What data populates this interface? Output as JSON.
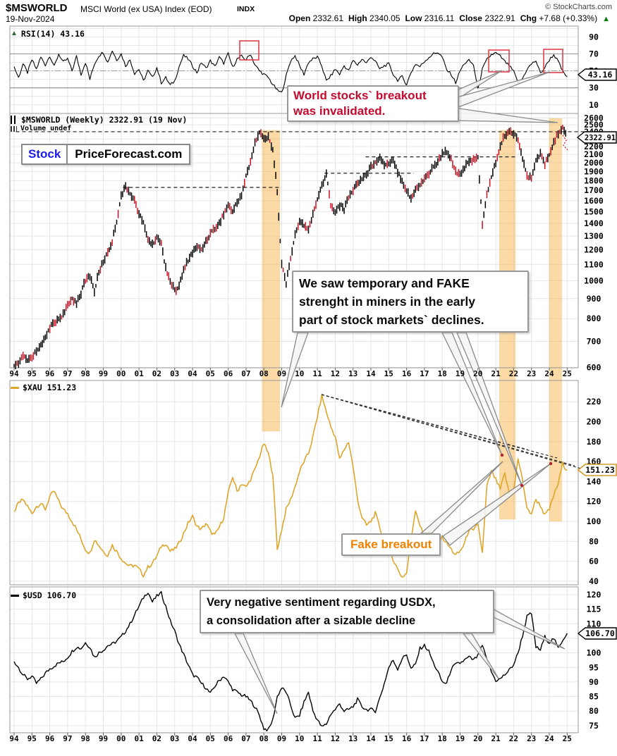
{
  "header": {
    "symbol": "$MSWORLD",
    "name": "MSCI World (ex USA) Index (EOD)",
    "exchange": "INDX",
    "copyright": "© StockCharts.com",
    "date": "19-Nov-2024",
    "open_label": "Open",
    "open": "2332.61",
    "high_label": "High",
    "high": "2340.05",
    "low_label": "Low",
    "low": "2316.11",
    "close_label": "Close",
    "close": "2322.91",
    "chg_label": "Chg",
    "chg": "+7.68 (+0.33%)",
    "chg_arrow": "▲",
    "up_color": "#007a00"
  },
  "watermark": {
    "part1": "Stock",
    "part2": "PriceForecast.com",
    "part1_color": "#1a1aee"
  },
  "legends": {
    "rsi": "RSI(14) 43.16",
    "main": "$MSWORLD (Weekly) 2322.91 (19 Nov)",
    "volume": "Volume undef",
    "xau": "$XAU 151.23",
    "usd": "$USD 106.70"
  },
  "badges": {
    "rsi": "43.16",
    "main": "2322.91",
    "xau": "151.23",
    "usd": "106.70"
  },
  "annotations": {
    "breakout_line1": "World stocks` breakout",
    "breakout_line2": "was invalidated.",
    "breakout_color": "#c40a2e",
    "miners_line1": "We saw temporary and FAKE",
    "miners_line2": "strenght in miners in the early",
    "miners_line3": "part of stock markets` declines.",
    "fake_breakout": "Fake breakout",
    "fake_color": "#ef8200",
    "usd_line1": "Very negative sentiment regarding USDX,",
    "usd_line2": "a consolidation after a sizable decline",
    "highlight_color": "#f7b246"
  },
  "x_axis": {
    "years": [
      "94",
      "95",
      "96",
      "97",
      "98",
      "99",
      "00",
      "01",
      "02",
      "03",
      "04",
      "05",
      "06",
      "07",
      "08",
      "09",
      "10",
      "11",
      "12",
      "13",
      "14",
      "15",
      "16",
      "17",
      "18",
      "19",
      "20",
      "21",
      "22",
      "23",
      "24",
      "25"
    ]
  },
  "chart_data": [
    {
      "panel": "rsi",
      "type": "line",
      "label": "RSI(14)",
      "current": 43.16,
      "yticks": [
        90,
        70,
        50,
        30,
        10
      ],
      "overbought": 70,
      "midline": 50,
      "oversold": 30,
      "x_start": 1994,
      "x_step": 0.25,
      "values": [
        55,
        42,
        58,
        48,
        63,
        52,
        66,
        57,
        68,
        55,
        70,
        60,
        64,
        50,
        67,
        46,
        60,
        40,
        58,
        68,
        72,
        60,
        74,
        63,
        70,
        56,
        63,
        47,
        52,
        38,
        50,
        42,
        54,
        36,
        42,
        33,
        38,
        55,
        68,
        64,
        56,
        48,
        60,
        53,
        62,
        55,
        66,
        59,
        70,
        54,
        64,
        67,
        63,
        70,
        57,
        50,
        46,
        42,
        34,
        27,
        24,
        44,
        62,
        68,
        56,
        46,
        60,
        64,
        66,
        56,
        38,
        44,
        52,
        46,
        56,
        50,
        62,
        57,
        64,
        59,
        67,
        61,
        52,
        56,
        58,
        46,
        39,
        43,
        34,
        48,
        58,
        55,
        61,
        66,
        70,
        72,
        66,
        51,
        46,
        36,
        50,
        59,
        62,
        57,
        28,
        52,
        63,
        69,
        71,
        67,
        61,
        56,
        49,
        36,
        41,
        52,
        58,
        62,
        47,
        54,
        63,
        69,
        61,
        49,
        43.16
      ]
    },
    {
      "panel": "main",
      "type": "candlestick",
      "label": "$MSWORLD (Weekly)",
      "current": 2322.91,
      "scale": "log",
      "yticks": [
        2600,
        2500,
        2400,
        2200,
        2100,
        2000,
        1900,
        1800,
        1700,
        1600,
        1500,
        1400,
        1300,
        1200,
        1100,
        1000,
        900,
        800,
        700,
        600
      ],
      "x_start": 1994,
      "x_step": 0.25,
      "values": [
        600,
        615,
        640,
        625,
        640,
        660,
        690,
        710,
        760,
        780,
        800,
        820,
        860,
        900,
        880,
        930,
        1000,
        1030,
        940,
        1050,
        1120,
        1180,
        1260,
        1420,
        1650,
        1730,
        1680,
        1600,
        1480,
        1400,
        1280,
        1230,
        1300,
        1240,
        1080,
        1000,
        940,
        970,
        1060,
        1130,
        1180,
        1220,
        1200,
        1260,
        1320,
        1360,
        1400,
        1480,
        1560,
        1500,
        1580,
        1660,
        1850,
        2000,
        2250,
        2390,
        2300,
        2340,
        2150,
        1700,
        1100,
        980,
        1150,
        1300,
        1420,
        1380,
        1350,
        1480,
        1600,
        1750,
        1870,
        1560,
        1500,
        1560,
        1520,
        1640,
        1700,
        1780,
        1820,
        1870,
        1950,
        2020,
        2060,
        1980,
        2000,
        2040,
        1900,
        1800,
        1700,
        1620,
        1700,
        1760,
        1820,
        1880,
        1950,
        2010,
        2100,
        2140,
        2050,
        1900,
        1870,
        1950,
        2000,
        2040,
        2080,
        1380,
        1650,
        1850,
        2000,
        2200,
        2350,
        2400,
        2380,
        2300,
        2050,
        1850,
        1820,
        2050,
        2100,
        1980,
        2100,
        2250,
        2380,
        2480,
        2322.91
      ],
      "highlight_bands": [
        [
          2007.9,
          2008.9
        ],
        [
          2021.2,
          2022.1
        ],
        [
          2024.0,
          2024.7
        ]
      ],
      "dashed_levels": [
        {
          "value": 2400,
          "from": 1994.1,
          "to": 2026
        },
        {
          "value": 1730,
          "from": 2000.1,
          "to": 2008.9
        },
        {
          "value": 1880,
          "from": 2011.4,
          "to": 2016.4
        },
        {
          "value": 2070,
          "from": 2013.7,
          "to": 2022.2
        }
      ]
    },
    {
      "panel": "xau",
      "type": "line",
      "label": "$XAU",
      "current": 151.23,
      "yticks": [
        220,
        200,
        180,
        160,
        140,
        120,
        100,
        80,
        60,
        40
      ],
      "x_start": 1994,
      "x_step": 0.25,
      "values": [
        110,
        118,
        122,
        115,
        108,
        115,
        118,
        112,
        125,
        130,
        120,
        112,
        108,
        100,
        92,
        82,
        72,
        68,
        82,
        76,
        70,
        66,
        76,
        70,
        63,
        58,
        55,
        56,
        52,
        46,
        54,
        58,
        65,
        75,
        78,
        70,
        72,
        78,
        88,
        98,
        105,
        95,
        92,
        98,
        90,
        86,
        94,
        104,
        128,
        145,
        130,
        138,
        134,
        142,
        152,
        165,
        178,
        168,
        148,
        72,
        92,
        112,
        122,
        135,
        150,
        160,
        168,
        185,
        205,
        226,
        210,
        195,
        185,
        162,
        172,
        180,
        155,
        122,
        104,
        96,
        100,
        108,
        94,
        78,
        72,
        62,
        52,
        44,
        48,
        82,
        112,
        96,
        84,
        90,
        84,
        80,
        84,
        78,
        72,
        66,
        70,
        78,
        92,
        90,
        98,
        68,
        135,
        150,
        142,
        132,
        148,
        128,
        132,
        162,
        142,
        112,
        108,
        122,
        116,
        106,
        112,
        126,
        138,
        158,
        151.23
      ]
    },
    {
      "panel": "usd",
      "type": "line",
      "label": "$USD",
      "current": 106.7,
      "yticks": [
        120,
        115,
        110,
        100,
        95,
        90,
        85,
        80,
        75
      ],
      "x_start": 1994,
      "x_step": 0.25,
      "values": [
        97,
        95,
        92.5,
        91,
        92,
        89.5,
        91,
        93,
        94.5,
        95.5,
        96.5,
        97,
        98.5,
        100.5,
        102,
        101.5,
        103.5,
        102,
        98.5,
        100,
        101,
        102.5,
        103,
        104,
        105.5,
        107.5,
        110,
        113,
        116,
        119,
        121,
        117.5,
        119.5,
        120.5,
        116,
        111,
        107.5,
        103,
        99.5,
        96,
        92.5,
        91.5,
        89.5,
        88,
        86,
        88.5,
        90.5,
        92,
        90,
        87.5,
        86.5,
        85.5,
        85,
        83.5,
        81.5,
        78.5,
        74,
        73.5,
        77,
        85,
        88,
        86.5,
        82,
        77.5,
        78.5,
        83,
        86.5,
        80,
        77,
        74.5,
        75.5,
        79,
        80.5,
        82.5,
        80,
        80.5,
        81.5,
        84,
        81.5,
        80.5,
        80.5,
        80,
        84.5,
        89.5,
        95,
        97.5,
        94.5,
        98,
        99.5,
        94.5,
        96,
        101.5,
        102.5,
        100.5,
        96.5,
        93.5,
        90,
        89.5,
        94.5,
        96,
        96.5,
        97.5,
        98.5,
        97.5,
        99,
        102.5,
        97.5,
        93.5,
        90.5,
        91,
        92.5,
        94,
        96,
        100,
        106,
        112.5,
        113.5,
        102,
        101,
        105.5,
        103.5,
        105,
        101.5,
        104.5,
        106.7
      ]
    }
  ]
}
